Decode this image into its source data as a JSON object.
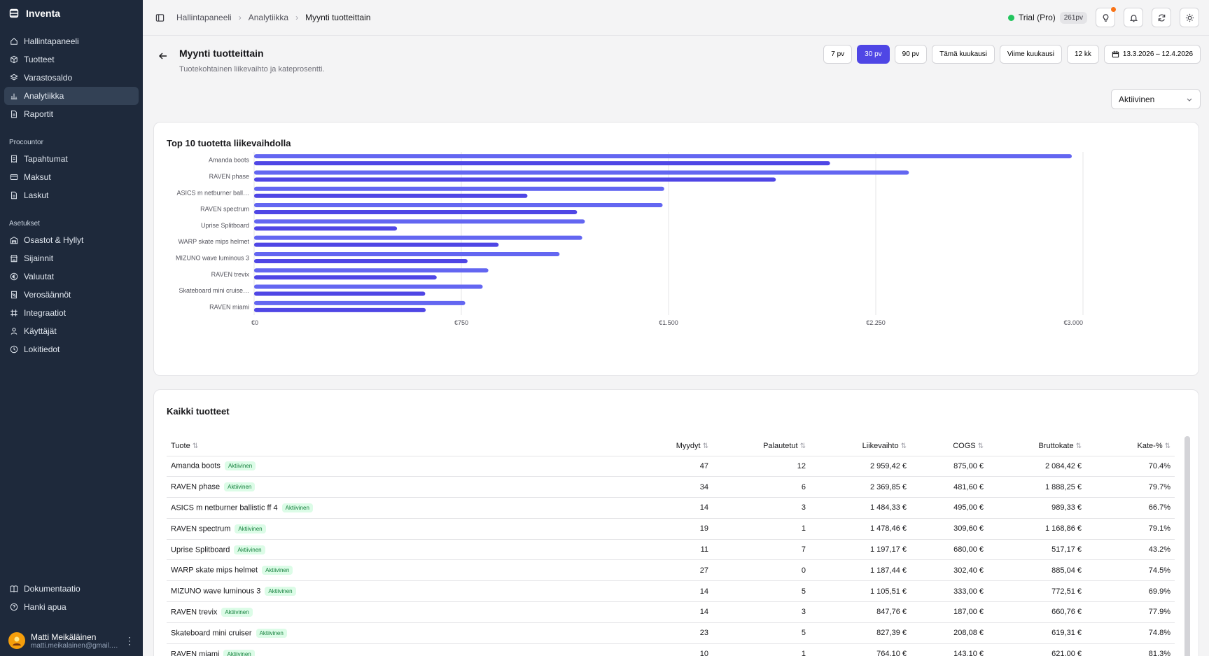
{
  "app": {
    "name": "Inventa"
  },
  "sidebar": {
    "main": [
      {
        "label": "Hallintapaneeli",
        "icon": "home-icon"
      },
      {
        "label": "Tuotteet",
        "icon": "box-icon"
      },
      {
        "label": "Varastosaldo",
        "icon": "layers-icon"
      },
      {
        "label": "Analytiikka",
        "icon": "chart-icon",
        "active": true
      },
      {
        "label": "Raportit",
        "icon": "file-icon"
      }
    ],
    "procountor_title": "Procountor",
    "procountor": [
      {
        "label": "Tapahtumat",
        "icon": "receipt-icon"
      },
      {
        "label": "Maksut",
        "icon": "card-icon"
      },
      {
        "label": "Laskut",
        "icon": "file-icon"
      }
    ],
    "settings_title": "Asetukset",
    "settings": [
      {
        "label": "Osastot & Hyllyt",
        "icon": "warehouse-icon"
      },
      {
        "label": "Sijainnit",
        "icon": "store-icon"
      },
      {
        "label": "Valuutat",
        "icon": "currency-icon"
      },
      {
        "label": "Verosäännöt",
        "icon": "percent-icon"
      },
      {
        "label": "Integraatiot",
        "icon": "integration-icon"
      },
      {
        "label": "Käyttäjät",
        "icon": "user-icon"
      },
      {
        "label": "Lokitiedot",
        "icon": "history-icon"
      }
    ],
    "bottom": [
      {
        "label": "Dokumentaatio",
        "icon": "book-icon"
      },
      {
        "label": "Hanki apua",
        "icon": "help-icon"
      }
    ],
    "user": {
      "name": "Matti Meikäläinen",
      "email": "matti.meikalainen@gmail.com"
    }
  },
  "topbar": {
    "breadcrumbs": [
      "Hallintapaneeli",
      "Analytiikka",
      "Myynti tuotteittain"
    ],
    "trial_label": "Trial (Pro)",
    "days_badge": "261pv"
  },
  "header": {
    "title": "Myynti tuotteittain",
    "subtitle": "Tuotekohtainen liikevaihto ja kateprosentti.",
    "ranges": [
      "7 pv",
      "30 pv",
      "90 pv",
      "Tämä kuukausi",
      "Viime kuukausi",
      "12 kk"
    ],
    "active_range": "30 pv",
    "date_range": "13.3.2026 – 12.4.2026",
    "status_filter": "Aktiivinen"
  },
  "chart_card": {
    "title": "Top 10 tuotetta liikevaihdolla"
  },
  "chart_data": {
    "type": "bar",
    "orientation": "horizontal",
    "categories": [
      "Amanda boots",
      "RAVEN phase",
      "ASICS m netburner ball…",
      "RAVEN spectrum",
      "Uprise Splitboard",
      "WARP skate mips helmet",
      "MIZUNO wave luminous 3",
      "RAVEN trevix",
      "Skateboard mini cruise…",
      "RAVEN miami"
    ],
    "series": [
      {
        "values": [
          2959.42,
          2369.85,
          1484.33,
          1478.46,
          1197.17,
          1187.44,
          1105.51,
          847.76,
          827.39,
          764.1
        ],
        "color": "#6366f1"
      },
      {
        "values": [
          2084.42,
          1888.25,
          989.33,
          1168.86,
          517.17,
          885.04,
          772.51,
          660.76,
          619.31,
          621.0
        ],
        "color": "#4f46e5"
      }
    ],
    "xticks": [
      "€0",
      "€750",
      "€1.500",
      "€2.250",
      "€3.000"
    ],
    "xlim": [
      0,
      3000
    ],
    "grid": true
  },
  "table_card": {
    "title": "Kaikki tuotteet",
    "columns": [
      "Tuote",
      "Myydyt",
      "Palautetut",
      "Liikevaihto",
      "COGS",
      "Bruttokate",
      "Kate-%"
    ],
    "rows": [
      {
        "name": "Amanda boots",
        "status": "Aktiivinen",
        "sold": "47",
        "returned": "12",
        "revenue": "2 959,42 €",
        "cogs": "875,00 €",
        "gross": "2 084,42 €",
        "margin": "70.4%"
      },
      {
        "name": "RAVEN phase",
        "status": "Aktiivinen",
        "sold": "34",
        "returned": "6",
        "revenue": "2 369,85 €",
        "cogs": "481,60 €",
        "gross": "1 888,25 €",
        "margin": "79.7%"
      },
      {
        "name": "ASICS m netburner ballistic ff 4",
        "status": "Aktiivinen",
        "sold": "14",
        "returned": "3",
        "revenue": "1 484,33 €",
        "cogs": "495,00 €",
        "gross": "989,33 €",
        "margin": "66.7%"
      },
      {
        "name": "RAVEN spectrum",
        "status": "Aktiivinen",
        "sold": "19",
        "returned": "1",
        "revenue": "1 478,46 €",
        "cogs": "309,60 €",
        "gross": "1 168,86 €",
        "margin": "79.1%"
      },
      {
        "name": "Uprise Splitboard",
        "status": "Aktiivinen",
        "sold": "11",
        "returned": "7",
        "revenue": "1 197,17 €",
        "cogs": "680,00 €",
        "gross": "517,17 €",
        "margin": "43.2%"
      },
      {
        "name": "WARP skate mips helmet",
        "status": "Aktiivinen",
        "sold": "27",
        "returned": "0",
        "revenue": "1 187,44 €",
        "cogs": "302,40 €",
        "gross": "885,04 €",
        "margin": "74.5%"
      },
      {
        "name": "MIZUNO wave luminous 3",
        "status": "Aktiivinen",
        "sold": "14",
        "returned": "5",
        "revenue": "1 105,51 €",
        "cogs": "333,00 €",
        "gross": "772,51 €",
        "margin": "69.9%"
      },
      {
        "name": "RAVEN trevix",
        "status": "Aktiivinen",
        "sold": "14",
        "returned": "3",
        "revenue": "847,76 €",
        "cogs": "187,00 €",
        "gross": "660,76 €",
        "margin": "77.9%"
      },
      {
        "name": "Skateboard mini cruiser",
        "status": "Aktiivinen",
        "sold": "23",
        "returned": "5",
        "revenue": "827,39 €",
        "cogs": "208,08 €",
        "gross": "619,31 €",
        "margin": "74.8%"
      },
      {
        "name": "RAVEN miami",
        "status": "Aktiivinen",
        "sold": "10",
        "returned": "1",
        "revenue": "764,10 €",
        "cogs": "143,10 €",
        "gross": "621,00 €",
        "margin": "81.3%"
      }
    ]
  }
}
